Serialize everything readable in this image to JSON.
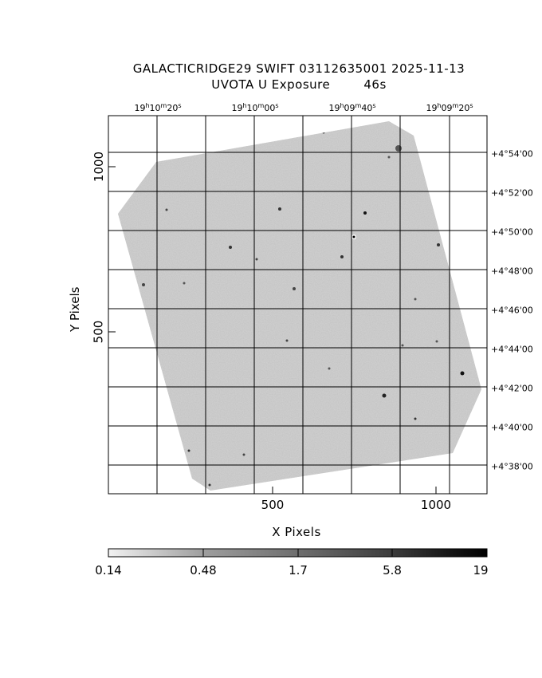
{
  "title": {
    "line1": "GALACTICRIDGE29 SWIFT 03112635001 2025-11-13",
    "line2": "UVOTA U Exposure        46s"
  },
  "axes": {
    "xlabel": "X Pixels",
    "ylabel": "Y Pixels",
    "x_ticks": [
      "500",
      "1000"
    ],
    "y_ticks": [
      "500",
      "1000"
    ]
  },
  "ra_ticks": [
    {
      "h": "19",
      "m": "10",
      "s": "20"
    },
    {
      "h": "19",
      "m": "10",
      "s": "00"
    },
    {
      "h": "19",
      "m": "09",
      "s": "40"
    },
    {
      "h": "19",
      "m": "09",
      "s": "20"
    }
  ],
  "dec_ticks": [
    {
      "d": "+4",
      "m": "54",
      "s": "00"
    },
    {
      "d": "+4",
      "m": "52",
      "s": "00"
    },
    {
      "d": "+4",
      "m": "50",
      "s": "00"
    },
    {
      "d": "+4",
      "m": "48",
      "s": "00"
    },
    {
      "d": "+4",
      "m": "46",
      "s": "00"
    },
    {
      "d": "+4",
      "m": "44",
      "s": "00"
    },
    {
      "d": "+4",
      "m": "42",
      "s": "00"
    },
    {
      "d": "+4",
      "m": "40",
      "s": "00"
    },
    {
      "d": "+4",
      "m": "38",
      "s": "00"
    }
  ],
  "colorbar": {
    "ticks": [
      "0.14",
      "0.48",
      "1.7",
      "5.8",
      "19"
    ]
  }
}
